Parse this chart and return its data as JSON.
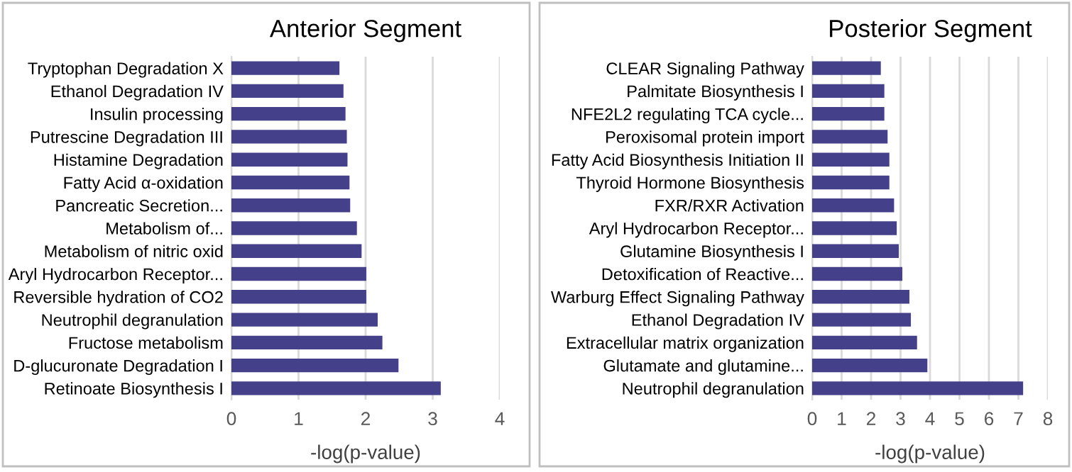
{
  "chart_data": [
    {
      "type": "bar",
      "orientation": "horizontal",
      "title": "Anterior Segment",
      "xlabel": "-log(p-value)",
      "categories": [
        "Tryptophan Degradation X",
        "Ethanol Degradation IV",
        "Insulin processing",
        "Putrescine Degradation III",
        "Histamine Degradation",
        "Fatty Acid α-oxidation",
        "Pancreatic Secretion...",
        "Metabolism of...",
        "Metabolism of nitric oxid",
        "Aryl Hydrocarbon Receptor...",
        "Reversible hydration of CO2",
        "Neutrophil degranulation",
        "Fructose metabolism",
        "D-glucuronate Degradation I",
        "Retinoate Biosynthesis I"
      ],
      "series": [
        {
          "color": "#45408a",
          "values": [
            1.61,
            1.67,
            1.7,
            1.72,
            1.73,
            1.76,
            1.77,
            1.87,
            1.94,
            2.01,
            2.01,
            2.18,
            2.25,
            2.49,
            3.12
          ]
        }
      ],
      "xlim": [
        0,
        4
      ],
      "xticks": [
        0,
        1,
        2,
        3,
        4
      ],
      "grid": "x"
    },
    {
      "type": "bar",
      "orientation": "horizontal",
      "title": "Posterior Segment",
      "xlabel": "-log(p-value)",
      "categories": [
        "CLEAR Signaling Pathway",
        "Palmitate Biosynthesis I",
        "NFE2L2 regulating TCA cycle...",
        "Peroxisomal protein import",
        "Fatty Acid Biosynthesis Initiation II",
        "Thyroid Hormone Biosynthesis",
        "FXR/RXR Activation",
        "Aryl Hydrocarbon Receptor...",
        "Glutamine Biosynthesis I",
        "Detoxification of Reactive...",
        "Warburg Effect Signaling Pathway",
        "Ethanol Degradation IV",
        "Extracellular matrix organization",
        "Glutamate and glutamine...",
        "Neutrophil degranulation"
      ],
      "series": [
        {
          "color": "#45408a",
          "values": [
            2.33,
            2.45,
            2.45,
            2.56,
            2.62,
            2.62,
            2.78,
            2.87,
            2.94,
            3.06,
            3.3,
            3.35,
            3.56,
            3.91,
            7.16
          ]
        }
      ],
      "xlim": [
        0,
        8
      ],
      "xticks": [
        0,
        1,
        2,
        3,
        4,
        5,
        6,
        7,
        8
      ],
      "grid": "x"
    }
  ]
}
